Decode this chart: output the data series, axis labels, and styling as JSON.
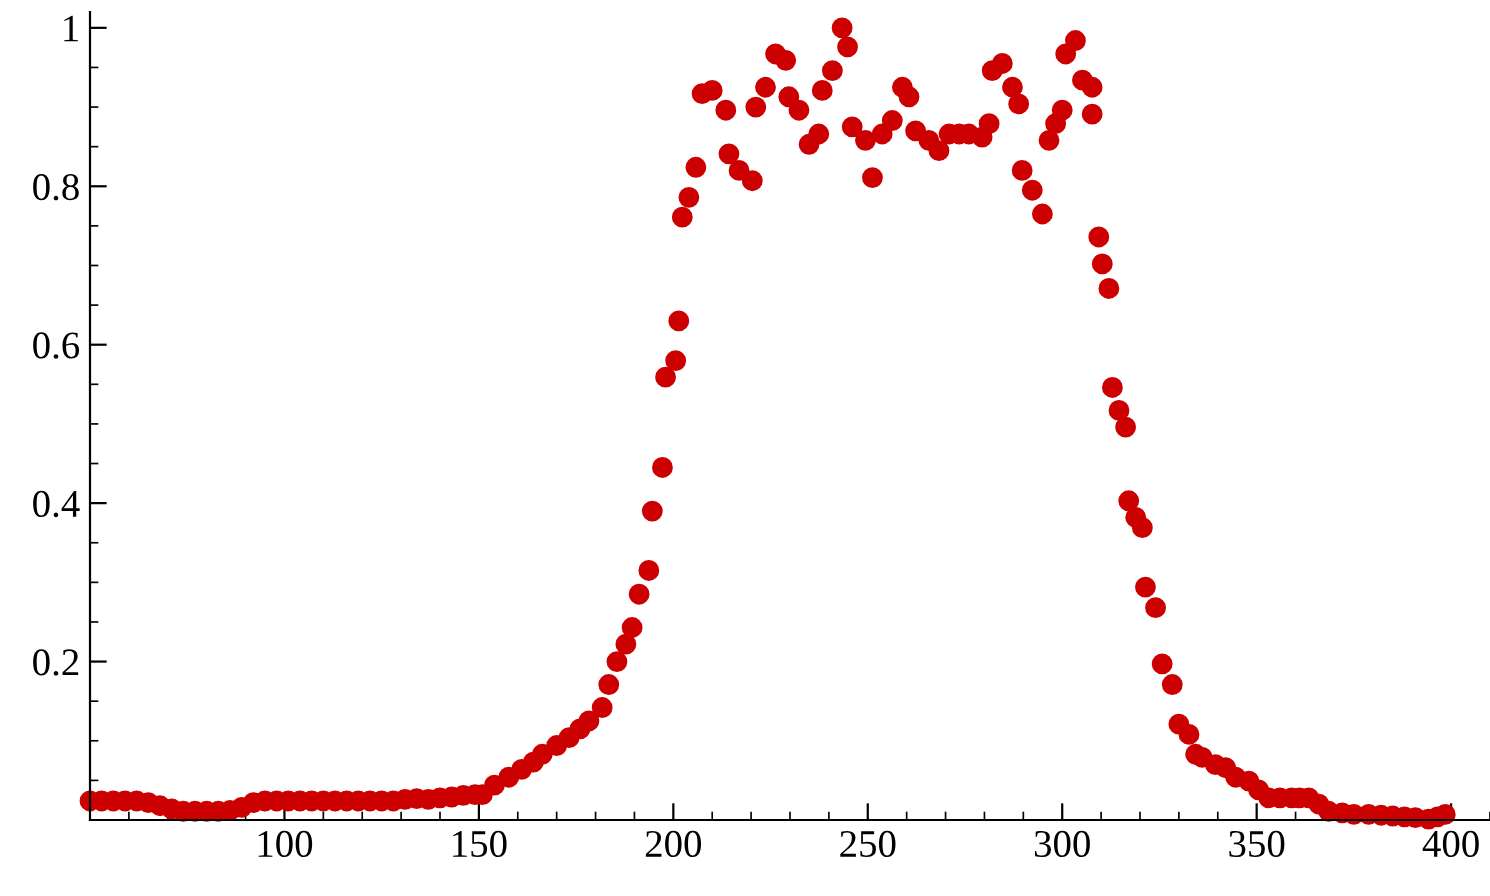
{
  "chart_data": {
    "type": "scatter",
    "xlim": [
      50,
      410
    ],
    "ylim": [
      0,
      1.02
    ],
    "xticks": [
      100,
      150,
      200,
      250,
      300,
      350,
      400
    ],
    "yticks": [
      0.2,
      0.4,
      0.6,
      0.8,
      1
    ],
    "grid": false,
    "legend": false,
    "marker": "circle",
    "series": [
      {
        "color": "#cc0000",
        "x": [
          50,
          53,
          56,
          59,
          62,
          65,
          68,
          71,
          74,
          77,
          80,
          83,
          86,
          89,
          92,
          95,
          98,
          101,
          104,
          107,
          110,
          113,
          116,
          119,
          122,
          125,
          128,
          131,
          134,
          137,
          140,
          143,
          146,
          149,
          150.9,
          154,
          157.7,
          161,
          164,
          166.3,
          170,
          173.2,
          176,
          178.3,
          181.7,
          183.4,
          185.5,
          187.8,
          189.4,
          191.2,
          193.7,
          194.6,
          197.2,
          198,
          200.6,
          201.4,
          202.3,
          204,
          205.8,
          207.4,
          210,
          213.5,
          214.3,
          216.9,
          220.3,
          221.2,
          223.7,
          226.3,
          228.9,
          229.7,
          232.3,
          234.9,
          237.4,
          238.3,
          240.9,
          243.4,
          244.8,
          246,
          249.4,
          251.2,
          253.7,
          256.3,
          258.9,
          260.6,
          262.3,
          265.7,
          268.3,
          270.9,
          273.5,
          276,
          279.4,
          281.2,
          282,
          284.6,
          287.2,
          288.8,
          289.7,
          292.3,
          294.9,
          296.6,
          298.3,
          300,
          300.9,
          303.4,
          305.2,
          307.7,
          307.7,
          309.4,
          310.3,
          312,
          312.9,
          314.6,
          316.3,
          317.1,
          318.9,
          320.6,
          321.4,
          324,
          325.7,
          328.3,
          330,
          332.6,
          334.3,
          336,
          339.4,
          342,
          344.6,
          348,
          350.5,
          353.1,
          356,
          359,
          361,
          363.4,
          366,
          368.5,
          372,
          375,
          378.8,
          382,
          385,
          388,
          390.8,
          394.2,
          396.5,
          398.5
        ],
        "values": [
          0.024,
          0.024,
          0.024,
          0.024,
          0.024,
          0.022,
          0.018,
          0.014,
          0.011,
          0.011,
          0.011,
          0.011,
          0.012,
          0.016,
          0.022,
          0.024,
          0.024,
          0.024,
          0.024,
          0.024,
          0.024,
          0.024,
          0.024,
          0.024,
          0.024,
          0.024,
          0.024,
          0.026,
          0.027,
          0.026,
          0.028,
          0.029,
          0.031,
          0.032,
          0.032,
          0.044,
          0.054,
          0.064,
          0.073,
          0.083,
          0.094,
          0.104,
          0.115,
          0.125,
          0.142,
          0.171,
          0.2,
          0.222,
          0.243,
          0.285,
          0.315,
          0.39,
          0.445,
          0.559,
          0.58,
          0.63,
          0.761,
          0.786,
          0.824,
          0.917,
          0.921,
          0.896,
          0.841,
          0.82,
          0.807,
          0.9,
          0.925,
          0.967,
          0.959,
          0.913,
          0.896,
          0.853,
          0.866,
          0.921,
          0.946,
          1.0,
          0.976,
          0.875,
          0.858,
          0.811,
          0.866,
          0.883,
          0.925,
          0.913,
          0.87,
          0.858,
          0.845,
          0.866,
          0.866,
          0.866,
          0.862,
          0.879,
          0.946,
          0.955,
          0.925,
          0.904,
          0.82,
          0.795,
          0.765,
          0.858,
          0.879,
          0.896,
          0.967,
          0.984,
          0.934,
          0.925,
          0.891,
          0.736,
          0.702,
          0.671,
          0.546,
          0.517,
          0.496,
          0.403,
          0.382,
          0.369,
          0.294,
          0.268,
          0.197,
          0.171,
          0.121,
          0.108,
          0.083,
          0.079,
          0.07,
          0.066,
          0.054,
          0.049,
          0.038,
          0.028,
          0.028,
          0.028,
          0.028,
          0.028,
          0.02,
          0.011,
          0.009,
          0.007,
          0.007,
          0.006,
          0.005,
          0.004,
          0.003,
          0.001,
          0.004,
          0.007
        ]
      }
    ]
  }
}
